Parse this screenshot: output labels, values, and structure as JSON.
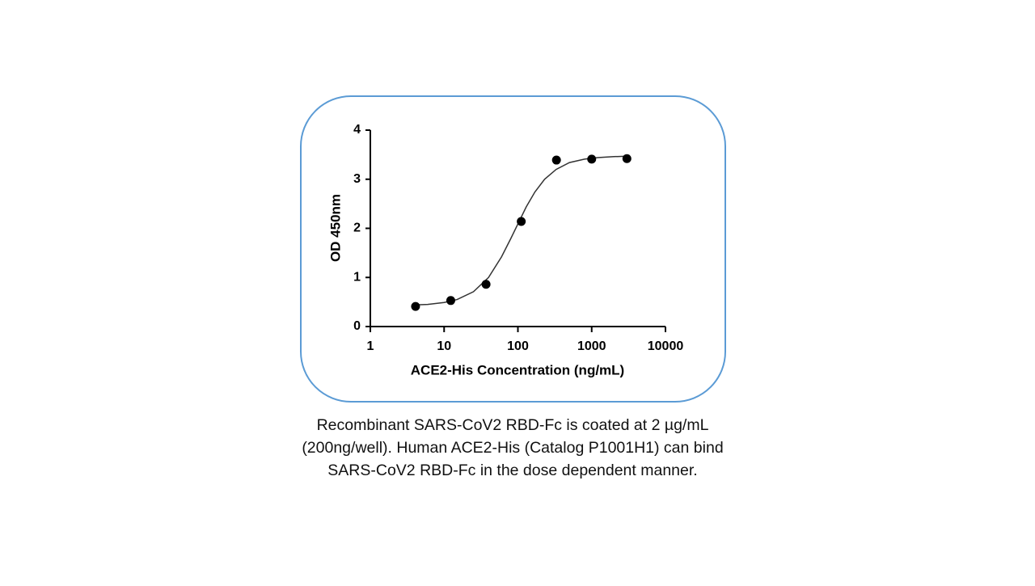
{
  "chart_data": {
    "type": "scatter",
    "xlabel": "ACE2-His Concentration (ng/mL)",
    "ylabel": "OD 450nm",
    "xscale": "log",
    "xlim": [
      1,
      10000
    ],
    "xticks": [
      1,
      10,
      100,
      1000,
      10000
    ],
    "ylim": [
      0,
      4
    ],
    "yticks": [
      0,
      1,
      2,
      3,
      4
    ],
    "series": [
      {
        "type": "scatter",
        "color": "#000000",
        "x": [
          4.1,
          12.3,
          37,
          111,
          333,
          1000,
          3000
        ],
        "values": [
          0.41,
          0.53,
          0.86,
          2.14,
          3.39,
          3.41,
          3.42
        ]
      },
      {
        "type": "line",
        "color": "#333333",
        "x": [
          4,
          6,
          10,
          15,
          25,
          40,
          60,
          80,
          100,
          130,
          170,
          230,
          330,
          500,
          800,
          1200,
          2000,
          3000
        ],
        "values": [
          0.44,
          0.45,
          0.49,
          0.55,
          0.71,
          1.0,
          1.42,
          1.79,
          2.09,
          2.44,
          2.74,
          3.0,
          3.2,
          3.34,
          3.41,
          3.44,
          3.46,
          3.47
        ]
      }
    ]
  },
  "caption": [
    "Recombinant SARS-CoV2 RBD-Fc is coated at 2 µg/mL",
    "(200ng/well). Human ACE2-His (Catalog P1001H1) can bind",
    "SARS-CoV2 RBD-Fc in the dose dependent manner."
  ]
}
